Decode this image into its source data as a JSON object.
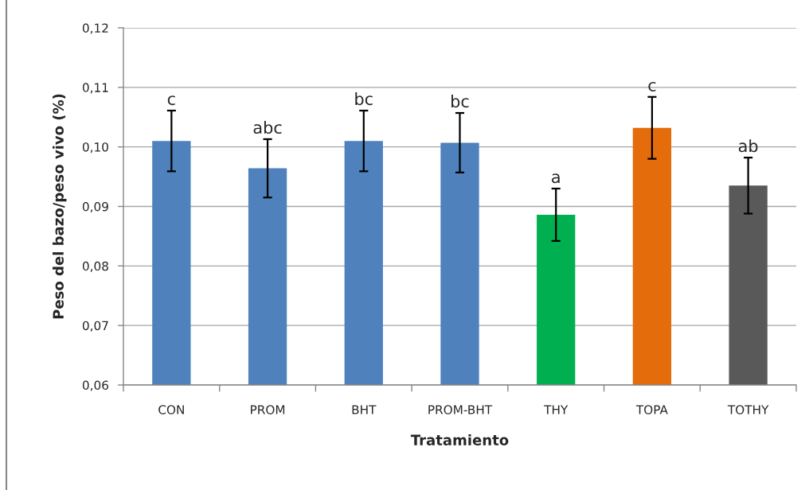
{
  "chart_data": {
    "type": "bar",
    "xlabel": "Tratamiento",
    "ylabel": "Peso del bazo/peso vivo (%)",
    "categories": [
      "CON",
      "PROM",
      "BHT",
      "PROM-BHT",
      "THY",
      "TOPA",
      "TOTHY"
    ],
    "values": [
      0.101,
      0.0964,
      0.101,
      0.1007,
      0.0886,
      0.1032,
      0.0935
    ],
    "colors": [
      "#4f81bd",
      "#4f81bd",
      "#4f81bd",
      "#4f81bd",
      "#00b050",
      "#e46c0a",
      "#595959"
    ],
    "errors": [
      0.0051,
      0.0049,
      0.0051,
      0.005,
      0.0044,
      0.0052,
      0.0047
    ],
    "ylim": [
      0.06,
      0.12
    ],
    "yticks": [
      {
        "value": 0.06,
        "label": "0,06"
      },
      {
        "value": 0.07,
        "label": "0,07"
      },
      {
        "value": 0.08,
        "label": "0,08"
      },
      {
        "value": 0.09,
        "label": "0,09"
      },
      {
        "value": 0.1,
        "label": "0,10"
      },
      {
        "value": 0.11,
        "label": "0,11"
      },
      {
        "value": 0.12,
        "label": "0,12"
      }
    ],
    "grid": "y",
    "annotations": [
      {
        "text": "c",
        "x": "CON",
        "y": 0.1061
      },
      {
        "text": "abc",
        "x": "PROM",
        "y": 0.1013
      },
      {
        "text": "bc",
        "x": "BHT",
        "y": 0.1061
      },
      {
        "text": "bc",
        "x": "PROM-BHT",
        "y": 0.1057
      },
      {
        "text": "a",
        "x": "THY",
        "y": 0.093
      },
      {
        "text": "c",
        "x": "TOPA",
        "y": 0.1084
      },
      {
        "text": "ab",
        "x": "TOTHY",
        "y": 0.0982
      }
    ]
  }
}
